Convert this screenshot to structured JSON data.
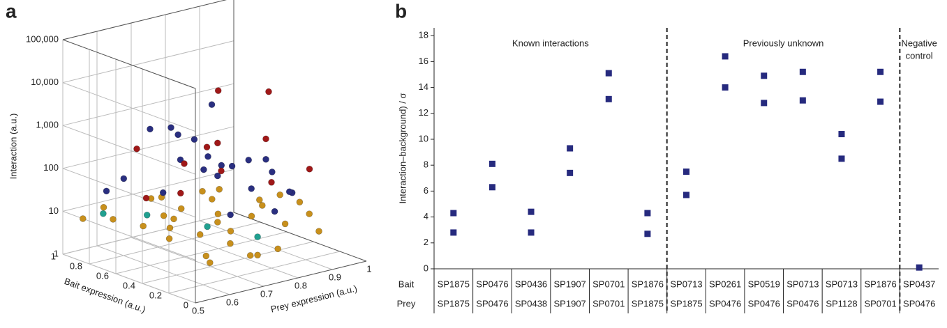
{
  "chart_data": [
    {
      "type": "scatter3d",
      "panel_label": "a",
      "x_label": "Prey expression (a.u.)",
      "y_label": "Bait expression (a.u.)",
      "z_label": "Interaction (a.u.)",
      "xlim": [
        0.5,
        1
      ],
      "xticks": [
        0.5,
        0.6,
        0.7,
        0.8,
        0.9,
        1
      ],
      "ylim": [
        0,
        1
      ],
      "yticks": [
        0,
        0.2,
        0.4,
        0.6,
        0.8,
        1
      ],
      "zlim": [
        1,
        100000
      ],
      "zlog": true,
      "zticks": [
        1,
        10,
        100,
        {
          "value": 1000,
          "label": "1,000"
        },
        {
          "value": 10000,
          "label": "10,000"
        },
        {
          "value": 100000,
          "label": "100,000"
        }
      ],
      "series": [
        {
          "color": "#c8901c",
          "x": [
            0.52,
            0.55,
            0.58,
            0.6,
            0.63,
            0.66,
            0.7,
            0.73,
            0.76,
            0.8,
            0.84,
            0.88,
            0.92,
            0.96,
            0.54,
            0.6,
            0.65,
            0.7,
            0.75,
            0.82,
            0.87,
            0.93,
            0.98,
            0.57,
            0.68,
            0.78,
            0.9,
            0.62,
            0.72,
            0.85,
            0.64,
            0.74
          ],
          "y": [
            0.9,
            0.75,
            0.6,
            0.45,
            0.3,
            0.15,
            0.85,
            0.7,
            0.5,
            0.35,
            0.2,
            0.8,
            0.6,
            0.4,
            0.3,
            0.95,
            0.55,
            0.25,
            0.9,
            0.7,
            0.45,
            0.25,
            0.6,
            0.1,
            0.05,
            0.1,
            0.1,
            0.2,
            0.4,
            0.85,
            0.6,
            0.15
          ],
          "z": [
            8,
            10,
            9,
            11,
            10,
            8,
            12,
            9,
            10,
            11,
            9,
            10,
            8,
            10,
            12,
            9,
            11,
            10,
            9,
            10,
            11,
            9,
            8,
            7,
            5,
            4,
            6,
            3,
            10,
            9,
            12,
            3
          ]
        },
        {
          "color": "#2a2f80",
          "x": [
            0.6,
            0.65,
            0.7,
            0.72,
            0.75,
            0.78,
            0.8,
            0.83,
            0.86,
            0.9,
            0.55,
            0.62,
            0.68,
            0.74,
            0.79,
            0.84,
            0.88,
            0.93,
            0.66,
            0.71,
            0.77,
            0.58
          ],
          "y": [
            0.6,
            0.5,
            0.7,
            0.4,
            0.55,
            0.3,
            0.65,
            0.45,
            0.35,
            0.5,
            0.8,
            0.85,
            0.2,
            0.75,
            0.15,
            0.6,
            0.25,
            0.4,
            0.35,
            0.55,
            0.5,
            0.45
          ],
          "z": [
            1500,
            300,
            800,
            120,
            200,
            60,
            2000,
            150,
            90,
            100,
            40,
            50,
            30,
            400,
            25,
            70,
            35,
            20,
            250,
            600,
            130,
            80
          ]
        },
        {
          "color": "#a01818",
          "x": [
            0.78,
            0.85,
            0.72,
            0.6,
            0.65,
            0.9,
            0.7,
            0.8,
            0.55,
            0.95,
            0.75,
            0.67
          ],
          "y": [
            0.55,
            0.35,
            0.4,
            0.7,
            0.3,
            0.5,
            0.6,
            0.2,
            0.5,
            0.3,
            0.45,
            0.55
          ],
          "z": [
            6000,
            7000,
            700,
            400,
            1000,
            300,
            150,
            100,
            60,
            80,
            120,
            40
          ]
        },
        {
          "color": "#20a090",
          "x": [
            0.56,
            0.63,
            0.69,
            0.74
          ],
          "y": [
            0.85,
            0.7,
            0.4,
            0.15
          ],
          "z": [
            10,
            10,
            9,
            8
          ]
        }
      ]
    },
    {
      "type": "category_scatter",
      "panel_label": "b",
      "y_label": "Interaction–background) / σ",
      "ylim": [
        0,
        18.6
      ],
      "yticks": [
        0,
        2,
        4,
        6,
        8,
        10,
        12,
        14,
        16,
        18
      ],
      "groups": [
        {
          "label": [
            "Known interactions"
          ]
        },
        {
          "label": [
            "Previously unknown"
          ]
        },
        {
          "label": [
            "Negative",
            "control"
          ]
        }
      ],
      "row_labels": [
        "Bait",
        "Prey"
      ],
      "bait": [
        "SP1875",
        "SP0476",
        "SP0436",
        "SP1907",
        "SP0701",
        "SP1876",
        "SP0713",
        "SP0261",
        "SP0519",
        "SP0713",
        "SP0713",
        "SP1876",
        "SP0437"
      ],
      "prey": [
        "SP1875",
        "SP0476",
        "SP0438",
        "SP1907",
        "SP0701",
        "SP1875",
        "SP1875",
        "SP0476",
        "SP0476",
        "SP0476",
        "SP1128",
        "SP0701",
        "SP0476"
      ],
      "series": [
        {
          "color": "#262a7e",
          "values": [
            4.3,
            8.1,
            4.4,
            9.3,
            15.1,
            4.3,
            7.5,
            16.4,
            14.9,
            15.2,
            10.4,
            15.2,
            0.1
          ]
        },
        {
          "color": "#262a7e",
          "values": [
            2.8,
            6.3,
            2.8,
            7.4,
            13.1,
            2.7,
            5.7,
            14.0,
            12.8,
            13.0,
            8.5,
            12.9,
            null
          ]
        }
      ]
    }
  ]
}
